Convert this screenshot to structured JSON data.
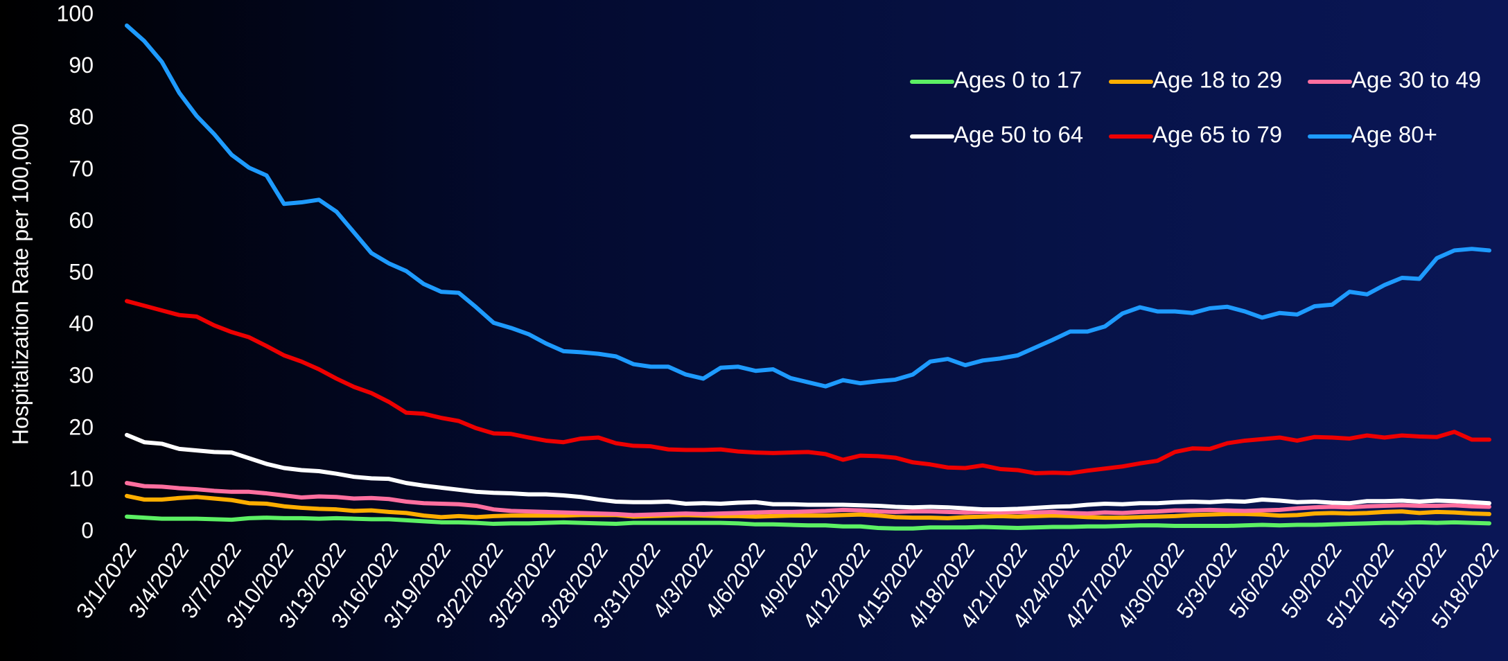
{
  "chart_data": {
    "type": "line",
    "ylabel": "Hospitalization Rate per 100,000",
    "categories": [
      "3/1/2022",
      null,
      null,
      "3/4/2022",
      null,
      null,
      "3/7/2022",
      null,
      null,
      "3/10/2022",
      null,
      null,
      "3/13/2022",
      null,
      null,
      "3/16/2022",
      null,
      null,
      "3/19/2022",
      null,
      null,
      "3/22/2022",
      null,
      null,
      "3/25/2022",
      null,
      null,
      "3/28/2022",
      null,
      null,
      "3/31/2022",
      null,
      null,
      "4/3/2022",
      null,
      null,
      "4/6/2022",
      null,
      null,
      "4/9/2022",
      null,
      null,
      "4/12/2022",
      null,
      null,
      "4/15/2022",
      null,
      null,
      "4/18/2022",
      null,
      null,
      "4/21/2022",
      null,
      null,
      "4/24/2022",
      null,
      null,
      "4/27/2022",
      null,
      null,
      "4/30/2022",
      null,
      null,
      "5/3/2022",
      null,
      null,
      "5/6/2022",
      null,
      null,
      "5/9/2022",
      null,
      null,
      "5/12/2022",
      null,
      null,
      "5/15/2022",
      null,
      null,
      "5/18/2022"
    ],
    "series": [
      {
        "name": "Ages 0 to 17",
        "color": "#5cf064",
        "values": [
          3,
          2.8,
          2.6,
          2.6,
          2.6,
          2.5,
          2.4,
          2.7,
          2.8,
          2.7,
          2.7,
          2.6,
          2.7,
          2.6,
          2.5,
          2.5,
          2.3,
          2.1,
          1.9,
          1.9,
          1.8,
          1.6,
          1.7,
          1.7,
          1.8,
          1.9,
          1.8,
          1.7,
          1.6,
          1.8,
          1.8,
          1.8,
          1.8,
          1.8,
          1.8,
          1.7,
          1.5,
          1.5,
          1.4,
          1.3,
          1.3,
          1.1,
          1.1,
          0.8,
          0.7,
          0.7,
          0.9,
          0.9,
          0.9,
          1,
          0.9,
          0.8,
          0.9,
          1,
          1,
          1.1,
          1.1,
          1.2,
          1.3,
          1.3,
          1.2,
          1.2,
          1.2,
          1.2,
          1.3,
          1.4,
          1.3,
          1.4,
          1.4,
          1.5,
          1.6,
          1.7,
          1.8,
          1.8,
          1.9,
          1.8,
          1.9,
          1.8,
          1.7
        ]
      },
      {
        "name": "Age 18 to 29",
        "color": "#ffae00",
        "values": [
          7,
          6.3,
          6.3,
          6.6,
          6.8,
          6.5,
          6.2,
          5.6,
          5.5,
          5,
          4.7,
          4.5,
          4.4,
          4.1,
          4.2,
          3.9,
          3.7,
          3.2,
          2.9,
          3.1,
          2.9,
          3.1,
          3.2,
          3.2,
          3.2,
          3.2,
          3.3,
          3.3,
          3.3,
          3,
          3.1,
          3.2,
          3.3,
          3.2,
          3.1,
          3.1,
          3,
          3.1,
          3.2,
          3.2,
          3.2,
          3.3,
          3.4,
          3.2,
          2.9,
          2.8,
          2.8,
          2.7,
          2.9,
          3,
          3.1,
          3,
          3.1,
          3.2,
          3.1,
          2.9,
          2.8,
          2.8,
          2.9,
          3,
          3.1,
          3.3,
          3.4,
          3.5,
          3.5,
          3.4,
          3.2,
          3.3,
          3.6,
          3.7,
          3.6,
          3.7,
          3.9,
          4,
          3.7,
          3.9,
          3.8,
          3.6,
          3.5
        ]
      },
      {
        "name": "Age 30 to 49",
        "color": "#ff6f9f",
        "values": [
          9.5,
          8.9,
          8.8,
          8.5,
          8.3,
          8,
          7.8,
          7.8,
          7.5,
          7.1,
          6.7,
          6.9,
          6.8,
          6.5,
          6.6,
          6.4,
          5.9,
          5.6,
          5.5,
          5.4,
          5.1,
          4.4,
          4.1,
          4,
          3.9,
          3.8,
          3.7,
          3.6,
          3.5,
          3.3,
          3.4,
          3.5,
          3.6,
          3.5,
          3.6,
          3.7,
          3.8,
          3.9,
          3.9,
          4,
          4.1,
          4.3,
          4.2,
          4,
          3.9,
          4,
          4,
          3.9,
          3.8,
          3.9,
          3.8,
          3.9,
          3.8,
          3.9,
          3.7,
          3.6,
          3.8,
          3.7,
          3.9,
          4,
          4.2,
          4.2,
          4.3,
          4.2,
          4.1,
          4.2,
          4.3,
          4.6,
          4.8,
          4.9,
          4.8,
          5,
          5.1,
          5.2,
          5.1,
          5.1,
          5.2,
          5,
          4.9
        ]
      },
      {
        "name": "Age 50 to 64",
        "color": "#ffffff",
        "values": [
          18.8,
          17.4,
          17.1,
          16.1,
          15.8,
          15.5,
          15.4,
          14.3,
          13.2,
          12.4,
          12,
          11.8,
          11.3,
          10.7,
          10.4,
          10.3,
          9.5,
          9,
          8.6,
          8.2,
          7.8,
          7.6,
          7.5,
          7.3,
          7.3,
          7.1,
          6.8,
          6.3,
          5.9,
          5.8,
          5.8,
          5.9,
          5.5,
          5.6,
          5.5,
          5.7,
          5.8,
          5.4,
          5.4,
          5.3,
          5.3,
          5.3,
          5.2,
          5.1,
          4.9,
          4.8,
          4.9,
          4.8,
          4.6,
          4.4,
          4.4,
          4.5,
          4.7,
          4.9,
          5,
          5.3,
          5.5,
          5.4,
          5.6,
          5.6,
          5.8,
          5.9,
          5.8,
          6,
          5.9,
          6.3,
          6.1,
          5.8,
          5.9,
          5.7,
          5.6,
          6,
          6,
          6.1,
          5.9,
          6.1,
          6,
          5.8,
          5.6
        ]
      },
      {
        "name": "Age 65 to 79",
        "color": "#ee0000",
        "values": [
          44.7,
          43.8,
          42.9,
          42,
          41.7,
          40,
          38.7,
          37.7,
          36,
          34.2,
          33,
          31.5,
          29.7,
          28.1,
          26.9,
          25.2,
          23.1,
          22.9,
          22.1,
          21.5,
          20.1,
          19.1,
          19,
          18.3,
          17.7,
          17.4,
          18.1,
          18.3,
          17.2,
          16.7,
          16.6,
          16,
          15.9,
          15.9,
          16,
          15.6,
          15.4,
          15.3,
          15.4,
          15.5,
          15.1,
          14,
          14.8,
          14.7,
          14.4,
          13.5,
          13.1,
          12.5,
          12.4,
          12.9,
          12.2,
          12,
          11.4,
          11.5,
          11.4,
          11.9,
          12.3,
          12.7,
          13.3,
          13.8,
          15.5,
          16.2,
          16.1,
          17.2,
          17.7,
          18,
          18.3,
          17.7,
          18.4,
          18.3,
          18.1,
          18.7,
          18.3,
          18.7,
          18.5,
          18.4,
          19.4,
          17.9,
          17.9
        ]
      },
      {
        "name": "Age 80+",
        "color": "#1e9bff",
        "values": [
          98,
          95,
          91,
          85,
          80.5,
          77,
          73,
          70.5,
          69,
          63.5,
          63.8,
          64.3,
          62,
          58,
          54,
          52,
          50.5,
          48,
          46.5,
          46.3,
          43.5,
          40.5,
          39.5,
          38.3,
          36.5,
          35,
          34.8,
          34.5,
          34,
          32.5,
          32,
          32,
          30.5,
          29.7,
          31.8,
          32,
          31.2,
          31.5,
          29.8,
          29,
          28.2,
          29.4,
          28.8,
          29.2,
          29.5,
          30.5,
          33,
          33.5,
          32.3,
          33.2,
          33.6,
          34.2,
          35.7,
          37.2,
          38.8,
          38.8,
          39.8,
          42.3,
          43.5,
          42.7,
          42.7,
          42.4,
          43.3,
          43.6,
          42.7,
          41.5,
          42.4,
          42.1,
          43.7,
          44,
          46.5,
          46,
          47.8,
          49.2,
          49,
          53,
          54.5,
          54.8,
          54.5
        ]
      }
    ],
    "ylim": [
      0,
      100
    ],
    "yticks": [
      0,
      10,
      20,
      30,
      40,
      50,
      60,
      70,
      80,
      90,
      100
    ],
    "grid": false,
    "legend": "top-right"
  }
}
